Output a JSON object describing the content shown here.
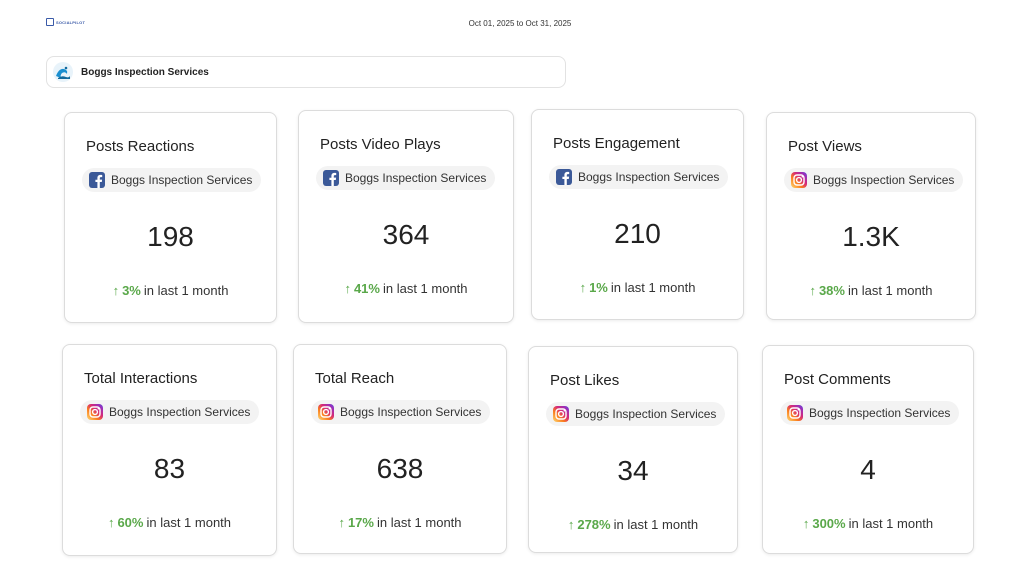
{
  "header": {
    "logo_text": "SOCIALPILOT",
    "date_range": "Oct 01, 2025 to Oct 31, 2025"
  },
  "account": {
    "name": "Boggs Inspection Services",
    "avatar_icon": "blue-wave-logo-icon"
  },
  "colors": {
    "positive": "#5aa84a",
    "facebook": "#3b5998",
    "instagram_gradient": [
      "#feda75",
      "#fa7e1e",
      "#d62976",
      "#962fbf",
      "#4f5bd5"
    ]
  },
  "cards": [
    {
      "title": "Posts Reactions",
      "network": "facebook",
      "network_icon": "facebook-icon",
      "account": "Boggs Inspection Services",
      "value": "198",
      "change_arrow": "↑",
      "change_pct": "3%",
      "change_text": "in last 1 month"
    },
    {
      "title": "Posts Video Plays",
      "network": "facebook",
      "network_icon": "facebook-icon",
      "account": "Boggs Inspection Services",
      "value": "364",
      "change_arrow": "↑",
      "change_pct": "41%",
      "change_text": "in last 1 month"
    },
    {
      "title": "Posts Engagement",
      "network": "facebook",
      "network_icon": "facebook-icon",
      "account": "Boggs Inspection Services",
      "value": "210",
      "change_arrow": "↑",
      "change_pct": "1%",
      "change_text": "in last 1 month"
    },
    {
      "title": "Post Views",
      "network": "instagram",
      "network_icon": "instagram-icon",
      "account": "Boggs Inspection Services",
      "value": "1.3K",
      "change_arrow": "↑",
      "change_pct": "38%",
      "change_text": "in last 1 month"
    },
    {
      "title": "Total Interactions",
      "network": "instagram",
      "network_icon": "instagram-icon",
      "account": "Boggs Inspection Services",
      "value": "83",
      "change_arrow": "↑",
      "change_pct": "60%",
      "change_text": "in last 1 month"
    },
    {
      "title": "Total Reach",
      "network": "instagram",
      "network_icon": "instagram-icon",
      "account": "Boggs Inspection Services",
      "value": "638",
      "change_arrow": "↑",
      "change_pct": "17%",
      "change_text": "in last 1 month"
    },
    {
      "title": "Post Likes",
      "network": "instagram",
      "network_icon": "instagram-icon",
      "account": "Boggs Inspection Services",
      "value": "34",
      "change_arrow": "↑",
      "change_pct": "278%",
      "change_text": "in last 1 month"
    },
    {
      "title": "Post Comments",
      "network": "instagram",
      "network_icon": "instagram-icon",
      "account": "Boggs Inspection Services",
      "value": "4",
      "change_arrow": "↑",
      "change_pct": "300%",
      "change_text": "in last 1 month"
    }
  ]
}
